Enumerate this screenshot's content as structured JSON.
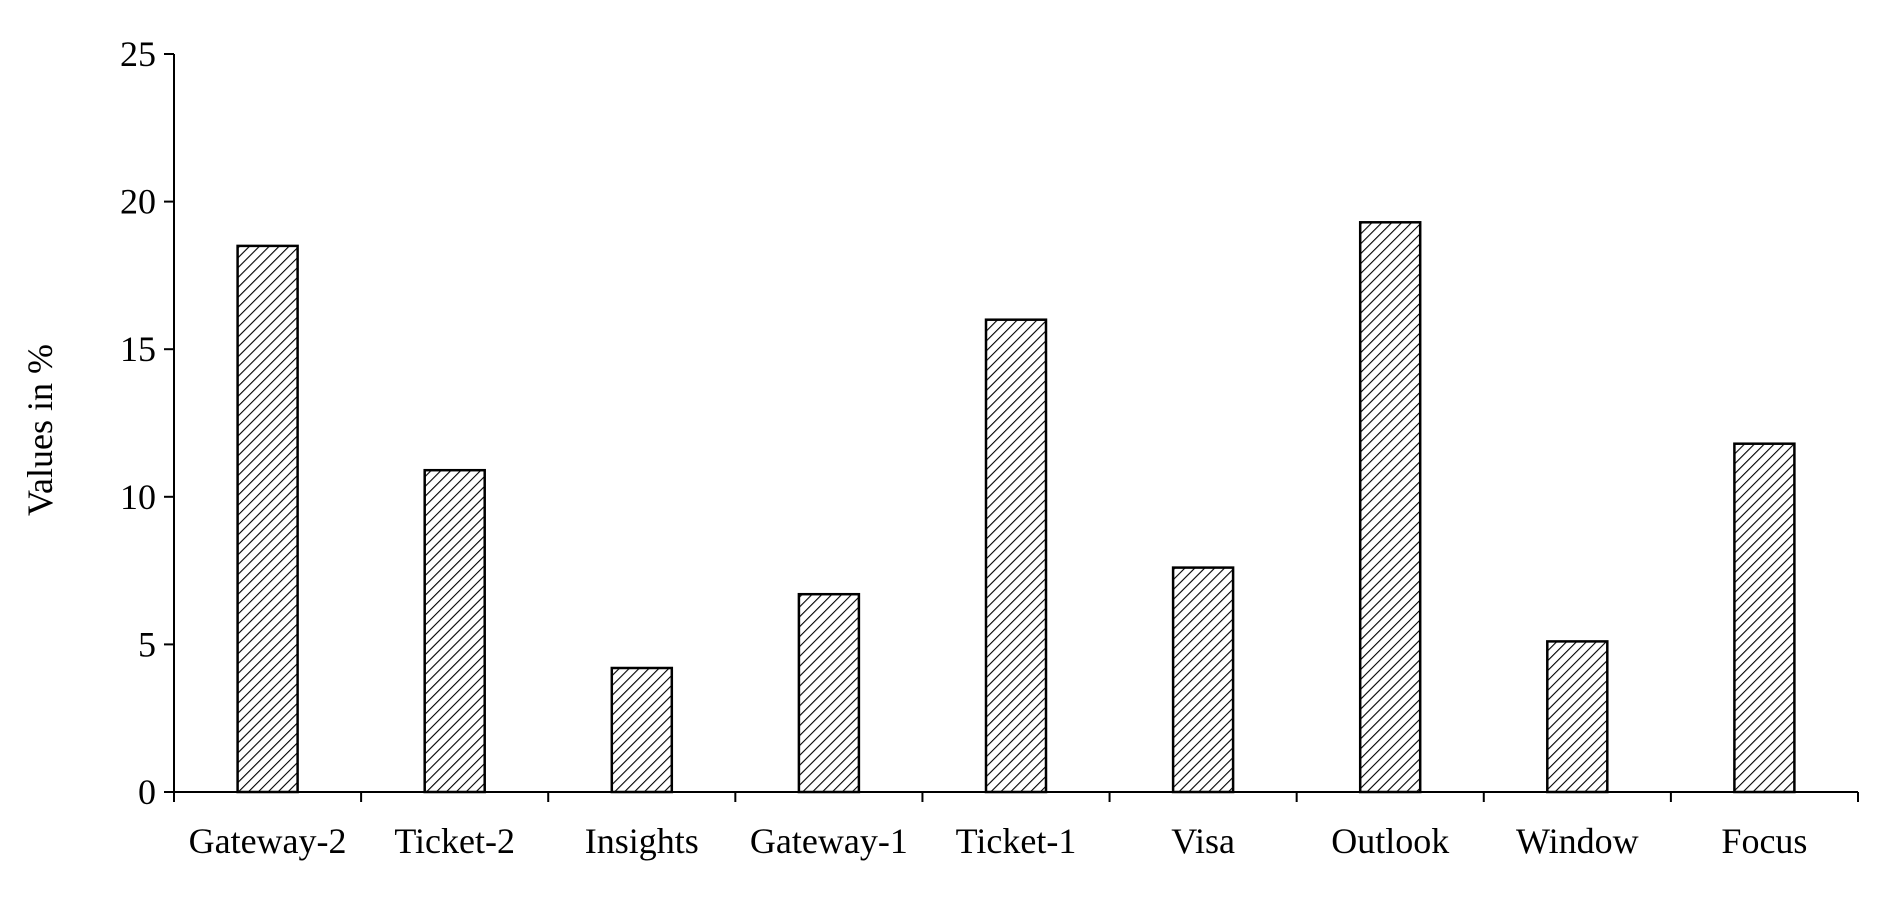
{
  "chart_data": {
    "type": "bar",
    "title": "",
    "xlabel": "",
    "ylabel": "Values in %",
    "categories": [
      "Gateway-2",
      "Ticket-2",
      "Insights",
      "Gateway-1",
      "Ticket-1",
      "Visa",
      "Outlook",
      "Window",
      "Focus"
    ],
    "values": [
      18.5,
      10.9,
      4.2,
      6.7,
      16.0,
      7.6,
      19.3,
      5.1,
      11.8
    ],
    "ylim": [
      0,
      25
    ],
    "yticks": [
      0,
      5,
      10,
      15,
      20,
      25
    ],
    "ytick_labels": [
      "0",
      "5",
      "10",
      "15",
      "20",
      "25"
    ],
    "grid": false,
    "legend": "none",
    "bar_fill": "diagonal-hatch",
    "bar_stroke": "#000000"
  }
}
